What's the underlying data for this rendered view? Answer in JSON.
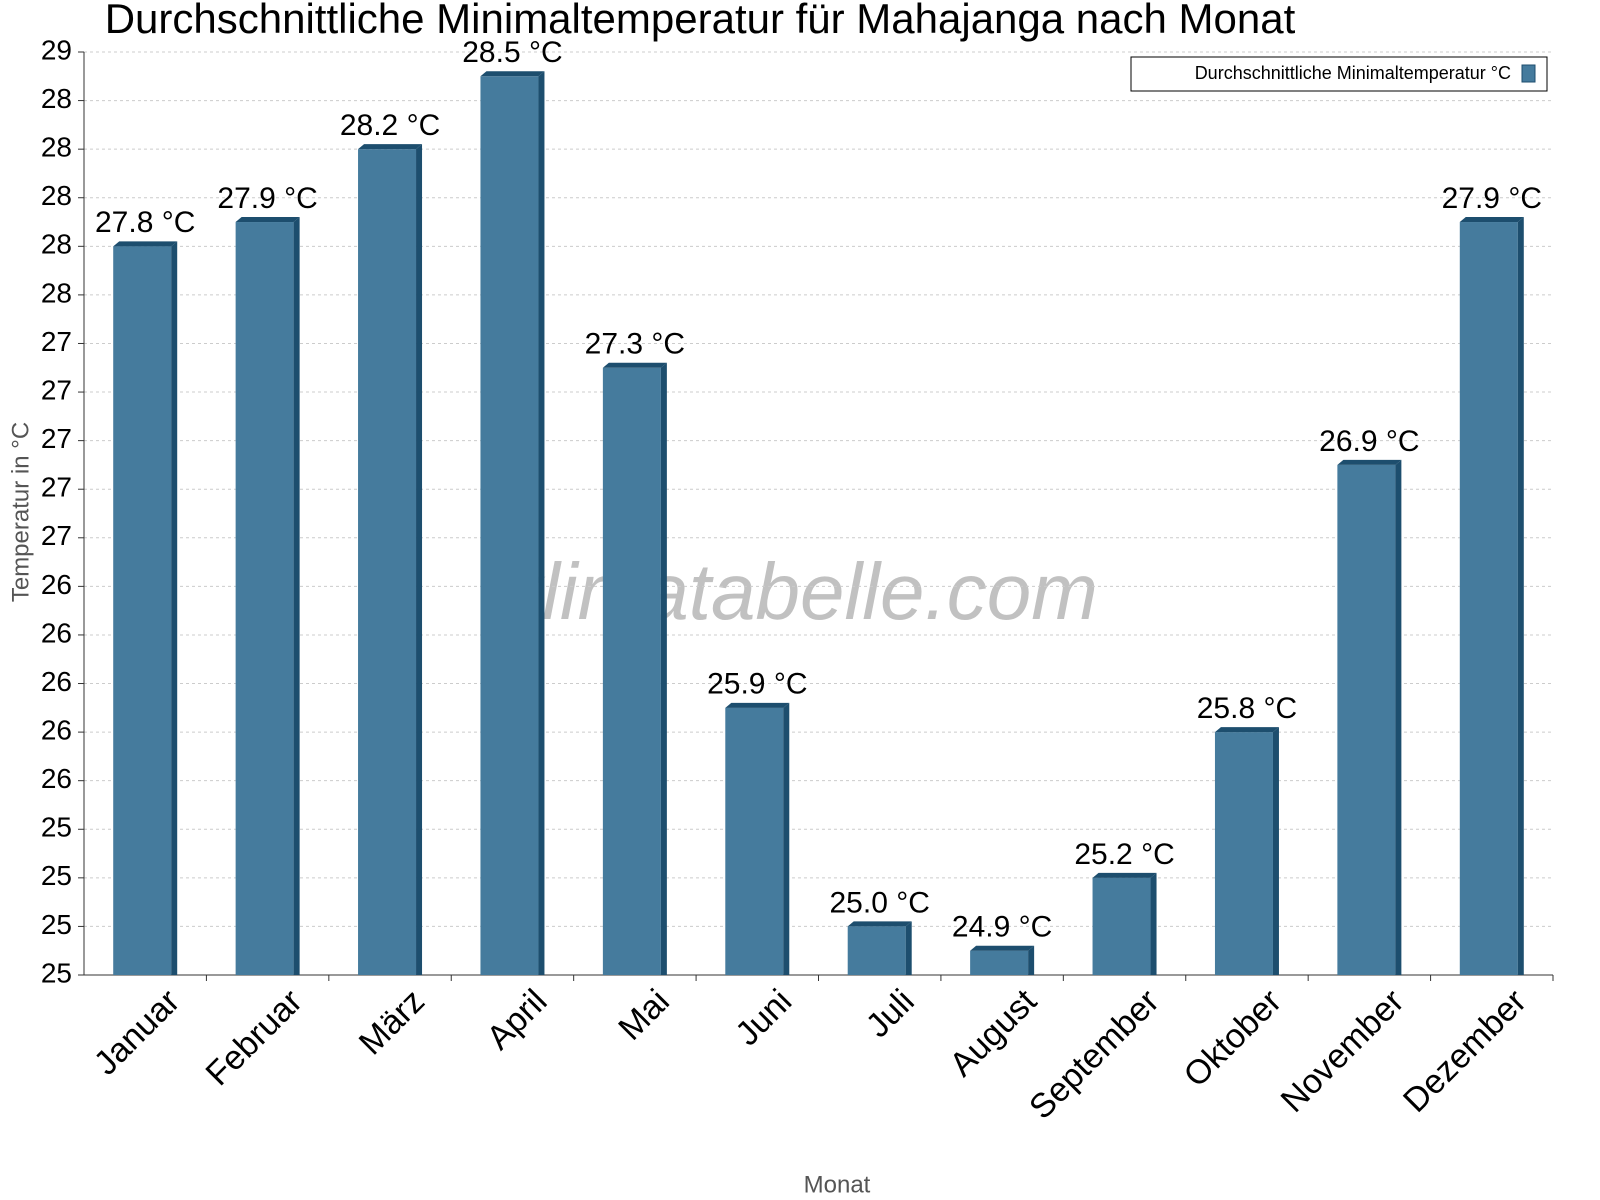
{
  "chart_data": {
    "type": "bar",
    "title": "Durchschnittliche Minimaltemperatur für Mahajanga nach Monat",
    "x_label": "Monat",
    "y_label": "Temperatur in °C",
    "watermark": "klimatabelle.com",
    "categories": [
      "Januar",
      "Februar",
      "März",
      "April",
      "Mai",
      "Juni",
      "Juli",
      "August",
      "September",
      "Oktober",
      "November",
      "Dezember"
    ],
    "series": [
      {
        "name": "Durchschnittliche Minimaltemperatur °C",
        "color": "#457b9d",
        "values": [
          27.8,
          27.9,
          28.2,
          28.5,
          27.3,
          25.9,
          25.0,
          24.9,
          25.2,
          25.8,
          26.9,
          27.9
        ],
        "value_labels": [
          "27.8 °C",
          "27.9 °C",
          "28.2 °C",
          "28.5 °C",
          "27.3 °C",
          "25.9 °C",
          "25.0 °C",
          "24.9 °C",
          "25.2 °C",
          "25.8 °C",
          "26.9 °C",
          "27.9 °C"
        ]
      }
    ],
    "ylim": [
      24.8,
      28.6
    ],
    "yticks": [
      {
        "value": 24.8,
        "label": "25"
      },
      {
        "value": 25.0,
        "label": "25"
      },
      {
        "value": 25.2,
        "label": "25"
      },
      {
        "value": 25.4,
        "label": "25"
      },
      {
        "value": 25.6,
        "label": "26"
      },
      {
        "value": 25.8,
        "label": "26"
      },
      {
        "value": 26.0,
        "label": "26"
      },
      {
        "value": 26.2,
        "label": "26"
      },
      {
        "value": 26.4,
        "label": "26"
      },
      {
        "value": 26.6,
        "label": "27"
      },
      {
        "value": 26.8,
        "label": "27"
      },
      {
        "value": 27.0,
        "label": "27"
      },
      {
        "value": 27.2,
        "label": "27"
      },
      {
        "value": 27.4,
        "label": "27"
      },
      {
        "value": 27.6,
        "label": "28"
      },
      {
        "value": 27.8,
        "label": "28"
      },
      {
        "value": 28.0,
        "label": "28"
      },
      {
        "value": 28.2,
        "label": "28"
      },
      {
        "value": 28.4,
        "label": "28"
      },
      {
        "value": 28.6,
        "label": "29"
      }
    ],
    "grid": true,
    "legend": "top-right"
  }
}
